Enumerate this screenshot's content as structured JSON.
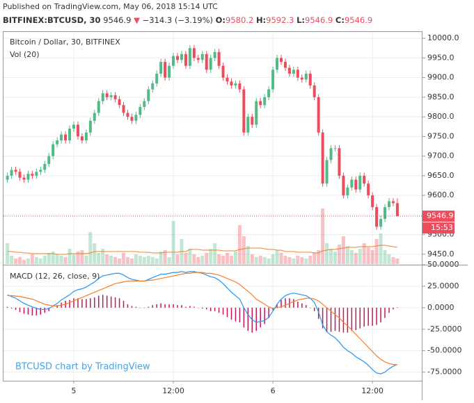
{
  "header": {
    "published": "Published on TradingView.com, May 06, 2018 15:14 UTC",
    "symbol": "BITFINEX:BTCUSD, 30",
    "last": "9546.9",
    "arrow": "▼",
    "change": "−314.3 (−3.19%)",
    "o_label": "O:",
    "o": "9580.2",
    "h_label": "H:",
    "h": "9592.3",
    "l_label": "L:",
    "l": "9546.9",
    "c_label": "C:",
    "c": "9546.9"
  },
  "chart_data": [
    {
      "type": "candlestick",
      "title": "Bitcoin / Dollar, 30, BITFINEX",
      "up_color": "#53b987",
      "down_color": "#eb4d5c",
      "open": [
        9640,
        9650,
        9665,
        9660,
        9645,
        9640,
        9655,
        9650,
        9660,
        9665,
        9680,
        9700,
        9730,
        9740,
        9755,
        9740,
        9770,
        9780,
        9750,
        9740,
        9760,
        9790,
        9810,
        9840,
        9860,
        9850,
        9855,
        9845,
        9830,
        9810,
        9800,
        9790,
        9805,
        9825,
        9840,
        9870,
        9885,
        9910,
        9940,
        9900,
        9930,
        9955,
        9945,
        9960,
        9930,
        9975,
        9950,
        9945,
        9960,
        9920,
        9950,
        9965,
        9930,
        9900,
        9890,
        9880,
        9885,
        9870,
        9760,
        9800,
        9780,
        9840,
        9830,
        9850,
        9870,
        9920,
        9950,
        9940,
        9925,
        9910,
        9920,
        9900,
        9895,
        9910,
        9880,
        9850,
        9760,
        9630,
        9690,
        9720,
        9720,
        9650,
        9600,
        9620,
        9640,
        9615,
        9650,
        9630,
        9600,
        9570,
        9520,
        9540,
        9570,
        9585,
        9580.2
      ],
      "high": [
        9658,
        9673,
        9673,
        9668,
        9653,
        9663,
        9663,
        9668,
        9673,
        9688,
        9708,
        9738,
        9748,
        9763,
        9763,
        9778,
        9788,
        9788,
        9758,
        9768,
        9798,
        9818,
        9848,
        9868,
        9868,
        9863,
        9863,
        9853,
        9838,
        9818,
        9808,
        9813,
        9833,
        9848,
        9878,
        9893,
        9918,
        9948,
        9948,
        9938,
        9963,
        9963,
        9968,
        9968,
        9983,
        9983,
        9958,
        9968,
        9968,
        9958,
        9973,
        9973,
        9938,
        9908,
        9898,
        9893,
        9893,
        9878,
        9808,
        9808,
        9848,
        9848,
        9858,
        9878,
        9928,
        9958,
        9958,
        9948,
        9933,
        9928,
        9928,
        9908,
        9918,
        9918,
        9888,
        9858,
        9768,
        9698,
        9728,
        9728,
        9728,
        9658,
        9628,
        9648,
        9648,
        9658,
        9658,
        9638,
        9608,
        9578,
        9548,
        9578,
        9593,
        9593,
        9592.3
      ],
      "low": [
        9632,
        9642,
        9652,
        9637,
        9632,
        9632,
        9642,
        9642,
        9652,
        9657,
        9672,
        9692,
        9722,
        9732,
        9732,
        9732,
        9762,
        9742,
        9732,
        9732,
        9752,
        9782,
        9802,
        9832,
        9842,
        9842,
        9837,
        9822,
        9802,
        9792,
        9782,
        9782,
        9797,
        9817,
        9832,
        9862,
        9877,
        9902,
        9892,
        9892,
        9922,
        9937,
        9937,
        9922,
        9922,
        9942,
        9937,
        9937,
        9912,
        9912,
        9942,
        9922,
        9892,
        9882,
        9872,
        9872,
        9862,
        9752,
        9752,
        9772,
        9772,
        9822,
        9822,
        9842,
        9862,
        9912,
        9932,
        9917,
        9902,
        9902,
        9892,
        9887,
        9887,
        9872,
        9842,
        9752,
        9622,
        9622,
        9682,
        9712,
        9642,
        9592,
        9592,
        9612,
        9607,
        9607,
        9622,
        9592,
        9562,
        9512,
        9512,
        9532,
        9562,
        9572,
        9546.9
      ],
      "close": [
        9650,
        9665,
        9660,
        9645,
        9640,
        9655,
        9650,
        9660,
        9665,
        9680,
        9700,
        9730,
        9740,
        9755,
        9740,
        9770,
        9780,
        9750,
        9740,
        9760,
        9790,
        9810,
        9840,
        9860,
        9850,
        9855,
        9845,
        9830,
        9810,
        9800,
        9790,
        9805,
        9825,
        9840,
        9870,
        9885,
        9910,
        9940,
        9900,
        9930,
        9955,
        9945,
        9960,
        9930,
        9975,
        9950,
        9945,
        9960,
        9920,
        9950,
        9965,
        9930,
        9900,
        9890,
        9880,
        9885,
        9870,
        9760,
        9800,
        9780,
        9840,
        9830,
        9850,
        9870,
        9920,
        9950,
        9940,
        9925,
        9910,
        9920,
        9900,
        9895,
        9910,
        9880,
        9850,
        9760,
        9630,
        9690,
        9720,
        9720,
        9650,
        9600,
        9620,
        9640,
        9615,
        9650,
        9630,
        9600,
        9570,
        9520,
        9540,
        9570,
        9585,
        9580.2,
        9546.9
      ],
      "last_label": "9546.9",
      "countdown": "15:53",
      "ylim": [
        9425,
        10018
      ],
      "yticks": [
        {
          "value": 9450,
          "label": "9450.0"
        },
        {
          "value": 9500,
          "label": "9500.0"
        },
        {
          "value": 9550,
          "label": "9550.0"
        },
        {
          "value": 9600,
          "label": "9600.0"
        },
        {
          "value": 9650,
          "label": "9650.0"
        },
        {
          "value": 9700,
          "label": "9700.0"
        },
        {
          "value": 9750,
          "label": "9750.0"
        },
        {
          "value": 9800,
          "label": "9800.0"
        },
        {
          "value": 9850,
          "label": "9850.0"
        },
        {
          "value": 9900,
          "label": "9900.0"
        },
        {
          "value": 9950,
          "label": "9950.0"
        },
        {
          "value": 10000,
          "label": "10000.0"
        }
      ],
      "xticks": [
        {
          "value": 16,
          "label": "5"
        },
        {
          "value": 40,
          "label": "12:00"
        },
        {
          "value": 64,
          "label": "6"
        },
        {
          "value": 88,
          "label": "12:00"
        }
      ],
      "grid": true
    },
    {
      "type": "volume",
      "title": "Vol (20)",
      "ma_color": "#f57f2a",
      "values": [
        30,
        12,
        8,
        10,
        6,
        8,
        14,
        10,
        8,
        12,
        16,
        18,
        14,
        12,
        10,
        22,
        14,
        18,
        20,
        12,
        46,
        30,
        16,
        22,
        14,
        12,
        10,
        8,
        16,
        10,
        8,
        14,
        12,
        10,
        12,
        10,
        8,
        18,
        20,
        10,
        62,
        14,
        36,
        16,
        22,
        14,
        10,
        12,
        16,
        22,
        30,
        14,
        12,
        16,
        12,
        18,
        56,
        40,
        26,
        14,
        10,
        12,
        10,
        8,
        14,
        20,
        16,
        12,
        10,
        8,
        12,
        10,
        8,
        12,
        16,
        20,
        80,
        30,
        22,
        18,
        28,
        40,
        26,
        20,
        16,
        22,
        30,
        24,
        20,
        36,
        44,
        20,
        14,
        10,
        8
      ],
      "ma_values": [
        18,
        18,
        17,
        17,
        16,
        16,
        15,
        15,
        15,
        15,
        15,
        15,
        14,
        14,
        14,
        15,
        15,
        15,
        15,
        15,
        16,
        18,
        18,
        18,
        18,
        18,
        18,
        18,
        18,
        18,
        18,
        18,
        17,
        17,
        17,
        16,
        16,
        16,
        17,
        17,
        17,
        17,
        18,
        18,
        21,
        21,
        21,
        20,
        20,
        20,
        20,
        20,
        19,
        19,
        19,
        19,
        21,
        22,
        23,
        23,
        23,
        23,
        22,
        21,
        21,
        20,
        20,
        18,
        18,
        18,
        17,
        17,
        17,
        17,
        16,
        16,
        19,
        20,
        21,
        21,
        22,
        23,
        24,
        24,
        24,
        25,
        25,
        25,
        25,
        26,
        27,
        27,
        26,
        25,
        24
      ]
    },
    {
      "type": "macd",
      "title": "MACD (12, 26, close, 9)",
      "watermark": "BTCUSD chart by TradingView",
      "macd_color": "#2196f3",
      "signal_color": "#f57f2a",
      "histogram_color": "#c2185b",
      "macd": [
        15,
        13,
        11,
        8,
        5,
        3,
        1,
        -1,
        -2,
        -2,
        -1,
        2,
        5,
        9,
        12,
        15,
        19,
        21,
        22,
        24,
        27,
        30,
        34,
        37,
        38,
        39,
        40,
        40,
        38,
        35,
        33,
        32,
        31,
        31,
        33,
        35,
        37,
        39,
        39,
        40,
        41,
        41,
        42,
        41,
        42,
        42,
        41,
        40,
        38,
        36,
        35,
        32,
        28,
        23,
        18,
        14,
        10,
        0,
        -8,
        -14,
        -17,
        -16,
        -15,
        -11,
        -4,
        4,
        10,
        14,
        16,
        17,
        16,
        15,
        14,
        11,
        6,
        -5,
        -20,
        -28,
        -32,
        -35,
        -40,
        -46,
        -50,
        -53,
        -57,
        -60,
        -63,
        -67,
        -72,
        -76,
        -77,
        -75,
        -71,
        -68,
        -66
      ],
      "signal": [
        14,
        14,
        13.5,
        13,
        12,
        11,
        10,
        8,
        6,
        4,
        3,
        2,
        2,
        3,
        4,
        6,
        8,
        10,
        12,
        14,
        16,
        18,
        20,
        22,
        24,
        26,
        28,
        29,
        30,
        31,
        31,
        31,
        31,
        31,
        32,
        32,
        33,
        34,
        35,
        36,
        37,
        38,
        39,
        40,
        40,
        41,
        41,
        41,
        40,
        40,
        39,
        38,
        36,
        34,
        32,
        30,
        27,
        23,
        19,
        15,
        10,
        7,
        4,
        1,
        -1,
        0,
        1,
        3,
        5,
        7,
        9,
        10,
        11,
        11,
        10,
        8,
        4,
        0,
        -4,
        -8,
        -12,
        -17,
        -21,
        -26,
        -31,
        -36,
        -41,
        -46,
        -51,
        -56,
        -60,
        -63,
        -65,
        -66,
        -66.5
      ],
      "histogram": [
        1,
        -1,
        -2.5,
        -5,
        -7,
        -8,
        -9,
        -9,
        -8,
        -6,
        -4,
        0,
        3,
        6,
        8,
        9,
        11,
        11,
        10,
        10,
        11,
        12,
        14,
        15,
        14,
        13,
        12,
        11,
        8,
        4,
        2,
        1,
        0,
        0,
        1,
        3,
        4,
        5,
        4,
        4,
        4,
        3,
        3,
        1,
        2,
        1,
        0,
        -1,
        -2,
        -4,
        -4,
        -6,
        -8,
        -11,
        -14,
        -16,
        -17,
        -23,
        -27,
        -29,
        -27,
        -23,
        -19,
        -12,
        -3,
        4,
        9,
        11,
        11,
        10,
        7,
        5,
        3,
        0,
        -4,
        -13,
        -24,
        -28,
        -28,
        -27,
        -28,
        -29,
        -29,
        -27,
        -26,
        -24,
        -22,
        -21,
        -21,
        -20,
        -17,
        -12,
        -6,
        -2,
        0.5
      ],
      "ylim": [
        -85,
        50
      ],
      "yticks": [
        {
          "value": 50,
          "label": "50.0000"
        },
        {
          "value": 25,
          "label": "25.0000"
        },
        {
          "value": 0,
          "label": "0.0000"
        },
        {
          "value": -25,
          "label": "-25.0000"
        },
        {
          "value": -50,
          "label": "-50.0000"
        },
        {
          "value": -75,
          "label": "-75.0000"
        }
      ],
      "grid": true
    }
  ]
}
